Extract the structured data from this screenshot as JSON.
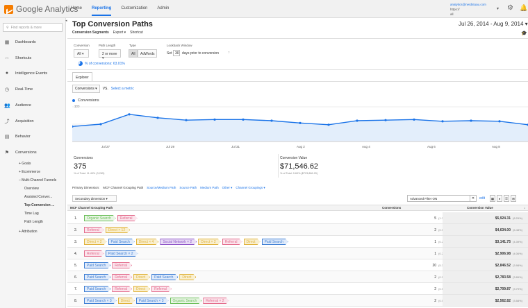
{
  "colors": {
    "accent": "#1a73e8",
    "organic": "#6bbf59",
    "referral": "#e36c8c",
    "direct": "#e0b23a",
    "paid": "#3f7fd4",
    "social": "#8c52c6"
  },
  "app": {
    "name": "Google Analytics"
  },
  "nav": {
    "home": "Home",
    "reporting": "Reporting",
    "customization": "Customization",
    "admin": "Admin"
  },
  "account": {
    "email": "analytics@nerdstuau.com",
    "line2": "https://",
    "line3": "all"
  },
  "sidebar": {
    "search_placeholder": "Find reports & more",
    "items": [
      {
        "label": "Dashboards",
        "icon": "dashboard-icon"
      },
      {
        "label": "Shortcuts",
        "icon": "shortcut-icon"
      },
      {
        "label": "Intelligence Events",
        "icon": "lightbulb-icon"
      },
      {
        "label": "Real-Time",
        "icon": "clock-icon"
      },
      {
        "label": "Audience",
        "icon": "people-icon"
      },
      {
        "label": "Acquisition",
        "icon": "acquisition-icon"
      },
      {
        "label": "Behavior",
        "icon": "behavior-icon"
      },
      {
        "label": "Conversions",
        "icon": "flag-icon"
      }
    ],
    "sub": [
      "+ Goals",
      "+ Ecommerce",
      "– Multi-Channel Funnels",
      "Overview",
      "Assisted Conver...",
      "Top Conversion ...",
      "Time Lag",
      "Path Length",
      "+ Attribution"
    ]
  },
  "page": {
    "title": "Top Conversion Paths",
    "date_range": "Jul 26, 2014 - Aug 9, 2014 ▾"
  },
  "toolbar": {
    "segments": "Conversion Segments",
    "export": "Export ▾",
    "shortcut": "Shortcut"
  },
  "filters": {
    "conversion_label": "Conversion",
    "conversion_value": "All ▾",
    "path_label": "Path Length",
    "path_value": "2 or more ▾",
    "type_label": "Type",
    "type_all": "All",
    "type_adwords": "AdWords",
    "lookback_label": "Lookback Window",
    "set": "Set",
    "days": "30",
    "days_text": "days prior to conversion",
    "help": "?"
  },
  "pct_conv": "% of conversions: 63.01%",
  "tab": "Explorer",
  "metric": {
    "selected": "Conversions ▾",
    "vs": "VS.",
    "select": "Select a metric"
  },
  "chart_data": {
    "type": "area",
    "series": [
      {
        "name": "Conversions",
        "values": [
          130,
          150,
          235,
          205,
          185,
          190,
          190,
          180,
          160,
          145,
          180,
          185,
          190,
          175,
          180,
          175,
          145
        ]
      }
    ],
    "x": [
      "Jul 26",
      "Jul 27",
      "Jul 28",
      "Jul 29",
      "Jul 30",
      "Jul 31",
      "Aug 1",
      "Aug 2",
      "Aug 3",
      "Aug 4",
      "Aug 5",
      "Aug 6",
      "Aug 7",
      "Aug 8",
      "Aug 9",
      "Aug 10",
      "Aug 11"
    ],
    "ylim": [
      0,
      300
    ],
    "yticks": [
      "300",
      "150"
    ],
    "xtick_labels": [
      "Jul 27",
      "Jul 29",
      "Jul 31",
      "Aug 2",
      "Aug 4",
      "Aug 6",
      "Aug 8"
    ]
  },
  "summary": {
    "conv_label": "Conversions",
    "conv_value": "375",
    "conv_sub": "% of Total: 11.49% (3,265)",
    "val_label": "Conversion Value",
    "val_value": "$71,546.62",
    "val_sub": "% of Total: 9.69% ($723,886.29)"
  },
  "dims": {
    "primary": "Primary Dimension:",
    "active": "MCF Channel Grouping Path",
    "links": [
      "Source/Medium Path",
      "Source Path",
      "Medium Path",
      "Other ▾",
      "Channel Groupings ▾"
    ]
  },
  "secdim": "Secondary dimension ▾",
  "filter": {
    "value": "Advanced Filter ON",
    "edit": "edit"
  },
  "table": {
    "h_path": "MCF Channel Grouping Path",
    "h_conv": "Conversions",
    "h_val": "Conversion Value",
    "rows": [
      {
        "n": "1.",
        "chips": [
          [
            "Organic Search",
            "organic"
          ],
          [
            "Referral",
            "referral"
          ]
        ],
        "conv": "5",
        "cp": "(1.33%)",
        "val": "$5,924.31",
        "vp": "(8.29%)"
      },
      {
        "n": "2.",
        "chips": [
          [
            "Referral",
            "referral"
          ],
          [
            "Direct × 12",
            "direct"
          ]
        ],
        "conv": "2",
        "cp": "(0.53%)",
        "val": "$4,634.00",
        "vp": "(6.48%)"
      },
      {
        "n": "3.",
        "chips": [
          [
            "Direct × 2",
            "direct"
          ],
          [
            "Paid Search",
            "paid"
          ],
          [
            "Direct × 4",
            "direct"
          ],
          [
            "Social Network × 2",
            "social"
          ],
          [
            "Direct × 2",
            "direct"
          ],
          [
            "Referral",
            "referral"
          ],
          [
            "Direct",
            "direct"
          ],
          [
            "Paid Search",
            "paid"
          ]
        ],
        "conv": "1",
        "cp": "(0.27%)",
        "val": "$3,141.75",
        "vp": "(4.39%)"
      },
      {
        "n": "4.",
        "chips": [
          [
            "Referral",
            "referral"
          ],
          [
            "Paid Search × 2",
            "paid"
          ]
        ],
        "conv": "1",
        "cp": "(0.27%)",
        "val": "$2,906.98",
        "vp": "(4.06%)"
      },
      {
        "n": "5.",
        "chips": [
          [
            "Paid Search",
            "paid"
          ],
          [
            "Referral",
            "referral"
          ]
        ],
        "conv": "20",
        "cp": "(5.33%)",
        "val": "$2,846.52",
        "vp": "(3.98%)"
      },
      {
        "n": "6.",
        "chips": [
          [
            "Paid Search",
            "paid"
          ],
          [
            "Referral",
            "referral"
          ],
          [
            "Direct",
            "direct"
          ],
          [
            "Paid Search",
            "paid"
          ],
          [
            "Direct",
            "direct"
          ]
        ],
        "conv": "2",
        "cp": "(0.53%)",
        "val": "$2,783.58",
        "vp": "(3.89%)"
      },
      {
        "n": "7.",
        "chips": [
          [
            "Paid Search",
            "paid"
          ],
          [
            "Referral",
            "referral"
          ],
          [
            "Direct",
            "direct"
          ],
          [
            "Referral",
            "referral"
          ]
        ],
        "conv": "2",
        "cp": "(0.53%)",
        "val": "$2,709.87",
        "vp": "(3.79%)"
      },
      {
        "n": "8.",
        "chips": [
          [
            "Paid Search × 3",
            "paid"
          ],
          [
            "Direct",
            "direct"
          ],
          [
            "Paid Search × 3",
            "paid"
          ],
          [
            "Organic Search",
            "organic"
          ],
          [
            "Referral × 2",
            "referral"
          ]
        ],
        "conv": "2",
        "cp": "(0.53%)",
        "val": "$2,562.82",
        "vp": "(3.58%)"
      }
    ]
  }
}
